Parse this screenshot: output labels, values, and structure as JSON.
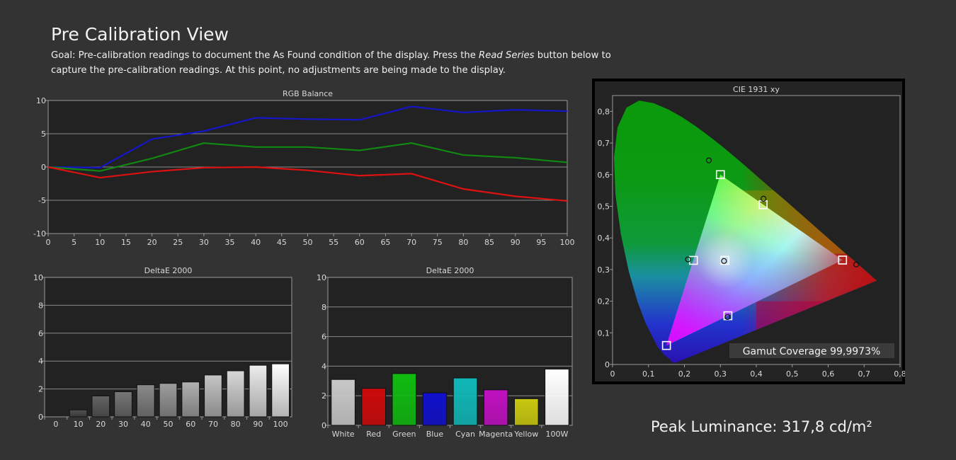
{
  "page": {
    "title": "Pre Calibration View",
    "goal_pre": "Goal: Pre-calibration readings to document the As Found condition of the display. Press the ",
    "goal_em": "Read Series",
    "goal_post": " button below to capture the pre-calibration readings. At this point, no adjustments are being made to the display.",
    "peak_luminance": "Peak Luminance: 317,8 cd/m²"
  },
  "colors": {
    "background": "#333333",
    "plot_bg": "#222222",
    "red": "#dd1111",
    "green": "#118811",
    "blue": "#1515cc"
  },
  "chart_data": [
    {
      "type": "line",
      "title": "RGB Balance",
      "x": [
        0,
        10,
        20,
        30,
        40,
        50,
        60,
        70,
        80,
        90,
        100
      ],
      "xticks": [
        "0",
        "5",
        "10",
        "15",
        "20",
        "25",
        "30",
        "35",
        "40",
        "45",
        "50",
        "55",
        "60",
        "65",
        "70",
        "75",
        "80",
        "85",
        "90",
        "95",
        "100"
      ],
      "yticks": [
        "10",
        "5",
        "0",
        "-5",
        "-10"
      ],
      "xlim": [
        0,
        100
      ],
      "ylim": [
        -10,
        10
      ],
      "grid": true,
      "series": [
        {
          "color": "#1515cc",
          "values": [
            0.0,
            -0.1,
            4.2,
            5.4,
            7.4,
            7.2,
            7.1,
            9.1,
            8.2,
            8.6,
            8.4
          ]
        },
        {
          "color": "#118811",
          "values": [
            0.0,
            -0.6,
            1.3,
            3.6,
            3.0,
            3.0,
            2.5,
            3.6,
            1.8,
            1.4,
            0.7
          ]
        },
        {
          "color": "#dd1111",
          "values": [
            0.0,
            -1.6,
            -0.7,
            -0.1,
            0.0,
            -0.5,
            -1.3,
            -1.0,
            -3.3,
            -4.4,
            -5.1
          ]
        }
      ]
    },
    {
      "type": "bar",
      "title": "DeltaE 2000",
      "categories": [
        "0",
        "10",
        "20",
        "30",
        "40",
        "50",
        "60",
        "70",
        "80",
        "90",
        "100"
      ],
      "values": [
        0,
        0.5,
        1.5,
        1.8,
        2.3,
        2.4,
        2.5,
        3.0,
        3.3,
        3.7,
        3.8
      ],
      "yticks": [
        "10",
        "8",
        "6",
        "4",
        "2",
        "0"
      ],
      "ylim": [
        0,
        10
      ],
      "grid": true
    },
    {
      "type": "bar",
      "title": "DeltaE 2000",
      "categories": [
        "White",
        "Red",
        "Green",
        "Blue",
        "Cyan",
        "Magenta",
        "Yellow",
        "100W"
      ],
      "values": [
        3.1,
        2.5,
        3.5,
        2.2,
        3.2,
        2.4,
        1.8,
        3.8
      ],
      "bar_colors": [
        "#c8c8c8",
        "#cc0a0a",
        "#10bb10",
        "#1010cc",
        "#10b8b8",
        "#c010c0",
        "#c8c810",
        "#ffffff"
      ],
      "yticks": [
        "10",
        "8",
        "6",
        "4",
        "2",
        "0"
      ],
      "ylim": [
        0,
        10
      ],
      "grid": true
    },
    {
      "type": "scatter",
      "title": "CIE 1931 xy",
      "xticks": [
        "0",
        "0,1",
        "0,2",
        "0,3",
        "0,4",
        "0,5",
        "0,6",
        "0,7",
        "0,8"
      ],
      "yticks": [
        "0,8",
        "0,7",
        "0,6",
        "0,5",
        "0,4",
        "0,3",
        "0,2",
        "0,1",
        "0"
      ],
      "xlim": [
        0,
        0.8
      ],
      "ylim": [
        0,
        0.85
      ],
      "targets": [
        {
          "x": 0.64,
          "y": 0.33
        },
        {
          "x": 0.3,
          "y": 0.6
        },
        {
          "x": 0.15,
          "y": 0.06
        },
        {
          "x": 0.3127,
          "y": 0.329
        },
        {
          "x": 0.225,
          "y": 0.329
        },
        {
          "x": 0.321,
          "y": 0.154
        },
        {
          "x": 0.419,
          "y": 0.505
        }
      ],
      "measured": [
        {
          "x": 0.678,
          "y": 0.316
        },
        {
          "x": 0.268,
          "y": 0.645
        },
        {
          "x": 0.21,
          "y": 0.332
        },
        {
          "x": 0.31,
          "y": 0.327
        },
        {
          "x": 0.42,
          "y": 0.524
        },
        {
          "x": 0.32,
          "y": 0.15
        }
      ],
      "gamut_coverage": "Gamut Coverage 99,9973%"
    }
  ]
}
